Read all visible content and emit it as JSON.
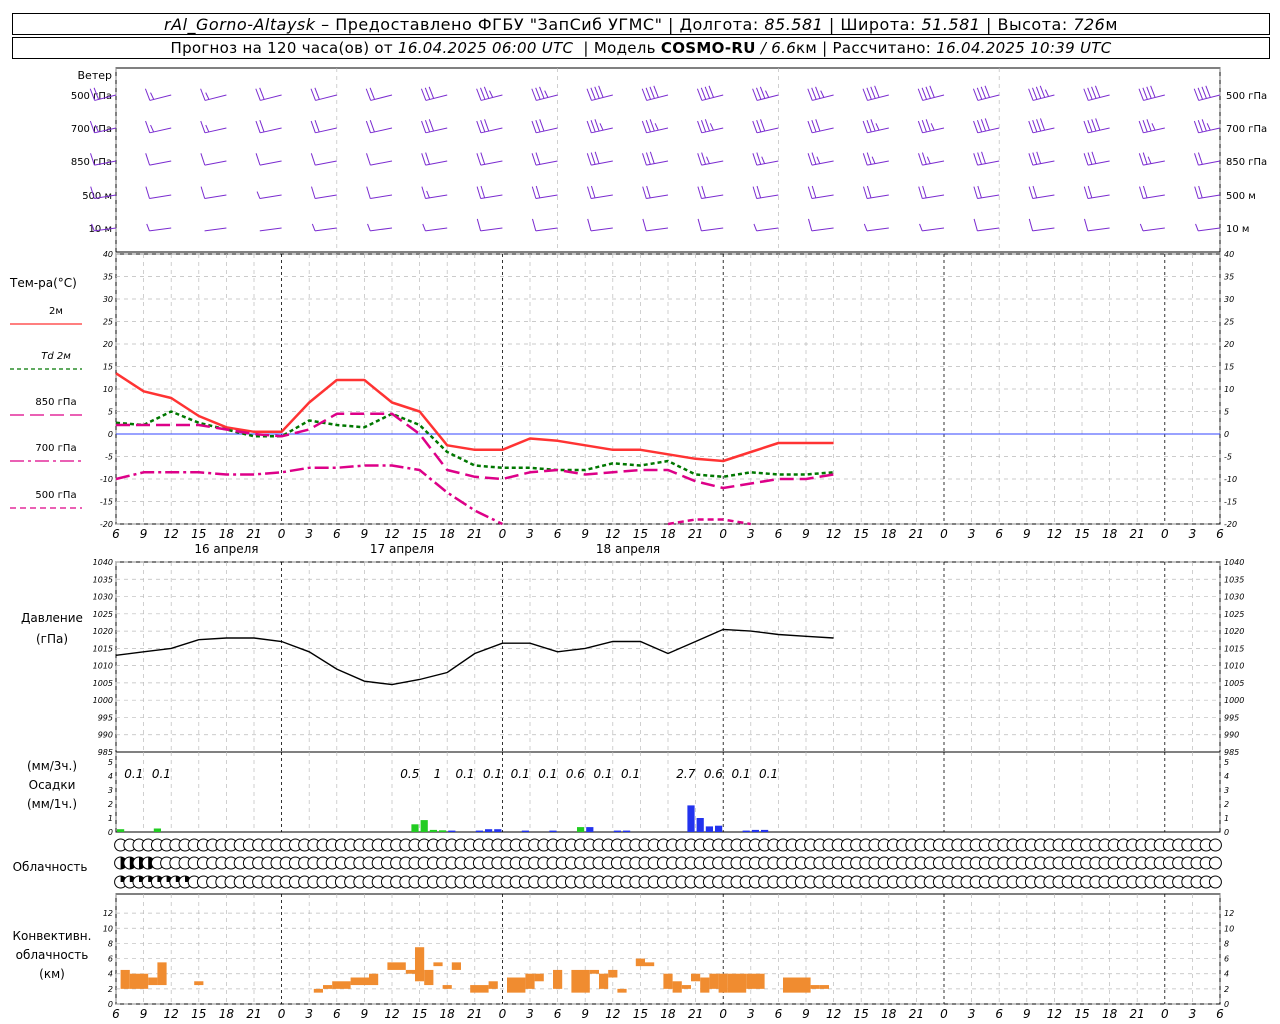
{
  "header": {
    "station": "rAl_Gorno-Altaysk",
    "provider": "– Предоставлено ФГБУ \"ЗапСиб УГМС\"",
    "lon_label": "Долгота:",
    "lon_value": "85.581",
    "lat_label": "Широта:",
    "lat_value": "51.581",
    "alt_label": "Высота:",
    "alt_value": "726",
    "alt_unit": "м",
    "forecast_label": "Прогноз на 120 часа(ов) от",
    "forecast_time": "16.04.2025 06:00 UTC",
    "model_label": "Модель",
    "model_name": "COSMO-RU",
    "model_res": "/ 6.6",
    "model_res_unit": "км",
    "calc_label": "Рассчитано:",
    "calc_time": "16.04.2025 10:39 UTC"
  },
  "chart_data": [
    {
      "id": "wind",
      "type": "wind-barbs",
      "title": "Ветер",
      "levels": [
        "500 гПа",
        "700 гПа",
        "850 гПа",
        "500 м",
        "10 м"
      ],
      "x_hours": [
        6,
        12,
        18,
        24,
        30,
        36,
        42,
        48,
        54,
        60,
        66,
        72,
        78,
        84,
        90,
        96,
        102,
        108,
        114,
        120,
        126
      ],
      "speed_ms": [
        [
          10,
          9,
          8,
          10,
          12,
          12,
          17,
          18,
          18,
          20,
          20,
          20,
          18,
          18,
          20,
          20,
          22,
          24,
          22,
          22,
          22
        ],
        [
          8,
          8,
          8,
          10,
          10,
          11,
          15,
          15,
          16,
          18,
          18,
          18,
          17,
          17,
          18,
          18,
          20,
          20,
          20,
          18,
          18
        ],
        [
          6,
          5,
          5,
          5,
          7,
          7,
          10,
          12,
          12,
          15,
          15,
          14,
          14,
          14,
          14,
          14,
          15,
          16,
          15,
          14,
          12
        ],
        [
          5,
          5,
          5,
          4,
          6,
          6,
          8,
          10,
          11,
          12,
          12,
          11,
          10,
          12,
          10,
          10,
          11,
          12,
          11,
          10,
          10
        ],
        [
          3,
          3,
          2,
          2,
          3,
          3,
          4,
          5,
          5,
          6,
          5,
          5,
          4,
          5,
          4,
          4,
          5,
          6,
          5,
          4,
          4
        ]
      ]
    },
    {
      "id": "temp",
      "type": "line",
      "ylabel": "Тем-ра(°C)",
      "ylim": [
        -20,
        40
      ],
      "yticks": [
        -20,
        -15,
        -10,
        -5,
        0,
        5,
        10,
        15,
        20,
        25,
        30,
        35,
        40
      ],
      "xticks": [
        "6",
        "9",
        "12",
        "15",
        "18",
        "21",
        "0",
        "3",
        "6",
        "9",
        "12",
        "15",
        "18",
        "21",
        "0",
        "3",
        "6",
        "9",
        "12",
        "15",
        "18",
        "21",
        "0",
        "3",
        "6",
        "9",
        "12"
      ],
      "day_labels": [
        {
          "hour": 12,
          "label": "16 апреля"
        },
        {
          "hour": 36,
          "label": "17 апреля"
        },
        {
          "hour": 60,
          "label": "18 апреля"
        }
      ],
      "x_hours": [
        6,
        9,
        12,
        15,
        18,
        21,
        24,
        27,
        30,
        33,
        36,
        39,
        42,
        45,
        48,
        51,
        54,
        57,
        60,
        63,
        66,
        69,
        72,
        75,
        78,
        81,
        84
      ],
      "series": [
        {
          "name": "2м",
          "color": "#ff3333",
          "dash": "none",
          "values": [
            13.5,
            9.5,
            8,
            4,
            1.5,
            0.5,
            0.5,
            7,
            12,
            12,
            7,
            5,
            -2.5,
            -3.5,
            -3.5,
            -1,
            -1.5,
            -2.5,
            -3.5,
            -3.5,
            -4.5,
            -5.5,
            -6,
            -4,
            -2,
            -2,
            -2
          ]
        },
        {
          "name": "Td 2м",
          "color": "#007700",
          "dash": "4 3",
          "values": [
            2.5,
            2,
            5,
            2.5,
            1,
            -0.5,
            -0.5,
            3,
            2,
            1.5,
            4.5,
            2,
            -4,
            -7,
            -7.5,
            -7.5,
            -8,
            -8,
            -6.5,
            -7,
            -6,
            -9,
            -9.5,
            -8.5,
            -9,
            -9,
            -8.5
          ]
        },
        {
          "name": "850 гПа",
          "color": "#dd0088",
          "dash": "14 6",
          "values": [
            2,
            2,
            2,
            2,
            1,
            0,
            -0.5,
            1,
            4.5,
            4.5,
            4.5,
            0,
            -8,
            -9.5,
            -10,
            -8.5,
            -8,
            -9,
            -8.5,
            -8,
            -8,
            -10.5,
            -12,
            -11,
            -10,
            -10,
            -9
          ]
        },
        {
          "name": "700 гПа",
          "color": "#dd0088",
          "dash": "14 4 3 4",
          "values": [
            -10,
            -8.5,
            -8.5,
            -8.5,
            -9,
            -9,
            -8.5,
            -7.5,
            -7.5,
            -7,
            -7,
            -8,
            -13,
            -17,
            -20
          ]
        },
        {
          "name": "500 гПа",
          "color": "#dd0088",
          "dash": "6 4",
          "values": [
            -20,
            -19,
            -19,
            -20
          ]
        }
      ]
    },
    {
      "id": "pressure",
      "type": "line",
      "ylabel": "Давление",
      "yunit": "(гПа)",
      "ylim": [
        985,
        1040
      ],
      "yticks": [
        985,
        990,
        995,
        1000,
        1005,
        1010,
        1015,
        1020,
        1025,
        1030,
        1035,
        1040
      ],
      "x_hours": [
        6,
        9,
        12,
        15,
        18,
        21,
        24,
        27,
        30,
        33,
        36,
        39,
        42,
        45,
        48,
        51,
        54,
        57,
        60,
        63,
        66,
        69,
        72,
        75,
        78,
        81,
        84
      ],
      "series": [
        {
          "name": "pressure",
          "color": "#000000",
          "values": [
            1013,
            1014,
            1015,
            1017.5,
            1018,
            1018,
            1017,
            1014,
            1009,
            1005.5,
            1004.5,
            1006,
            1008,
            1013.5,
            1016.5,
            1016.5,
            1014,
            1015,
            1017,
            1017,
            1013.5,
            1017,
            1020.5,
            1020,
            1019,
            1018.5,
            1018
          ]
        }
      ]
    },
    {
      "id": "precip",
      "type": "bar",
      "ylabel": "(мм/3ч.)",
      "ylabel2": "Осадки",
      "ylabel3": "(мм/1ч.)",
      "ylim": [
        0,
        5
      ],
      "yticks": [
        0,
        1,
        2,
        3,
        4,
        5
      ],
      "totals": [
        {
          "hour": 7.5,
          "label": "0.1"
        },
        {
          "hour": 10.5,
          "label": "0.1"
        },
        {
          "hour": 37.5,
          "label": "0.5"
        },
        {
          "hour": 40.5,
          "label": "1"
        },
        {
          "hour": 43.5,
          "label": "0.1"
        },
        {
          "hour": 46.5,
          "label": "0.1"
        },
        {
          "hour": 49.5,
          "label": "0.1"
        },
        {
          "hour": 52.5,
          "label": "0.1"
        },
        {
          "hour": 55.5,
          "label": "0.6"
        },
        {
          "hour": 58.5,
          "label": "0.1"
        },
        {
          "hour": 61.5,
          "label": "0.1"
        },
        {
          "hour": 67.5,
          "label": "2.7"
        },
        {
          "hour": 70.5,
          "label": "0.6"
        },
        {
          "hour": 73.5,
          "label": "0.1"
        },
        {
          "hour": 76.5,
          "label": "0.1"
        }
      ],
      "bars": [
        {
          "hour": 6.5,
          "value": 0.2,
          "color": "#22cc22"
        },
        {
          "hour": 10.5,
          "value": 0.25,
          "color": "#22cc22"
        },
        {
          "hour": 38.5,
          "value": 0.55,
          "color": "#22cc22"
        },
        {
          "hour": 39.5,
          "value": 0.85,
          "color": "#22cc22"
        },
        {
          "hour": 40.5,
          "value": 0.15,
          "color": "#22cc22"
        },
        {
          "hour": 41.5,
          "value": 0.12,
          "color": "#22cc22"
        },
        {
          "hour": 42.5,
          "value": 0.1,
          "color": "#2233ee"
        },
        {
          "hour": 45.5,
          "value": 0.1,
          "color": "#2233ee"
        },
        {
          "hour": 46.5,
          "value": 0.2,
          "color": "#2233ee"
        },
        {
          "hour": 47.5,
          "value": 0.2,
          "color": "#2233ee"
        },
        {
          "hour": 50.5,
          "value": 0.1,
          "color": "#2233ee"
        },
        {
          "hour": 53.5,
          "value": 0.1,
          "color": "#2233ee"
        },
        {
          "hour": 56.5,
          "value": 0.35,
          "color": "#22cc22"
        },
        {
          "hour": 57.5,
          "value": 0.35,
          "color": "#2233ee"
        },
        {
          "hour": 60.5,
          "value": 0.1,
          "color": "#2233ee"
        },
        {
          "hour": 61.5,
          "value": 0.1,
          "color": "#2233ee"
        },
        {
          "hour": 68.5,
          "value": 1.9,
          "color": "#2233ee"
        },
        {
          "hour": 69.5,
          "value": 1.0,
          "color": "#2233ee"
        },
        {
          "hour": 70.5,
          "value": 0.4,
          "color": "#2233ee"
        },
        {
          "hour": 71.5,
          "value": 0.45,
          "color": "#2233ee"
        },
        {
          "hour": 74.5,
          "value": 0.1,
          "color": "#2233ee"
        },
        {
          "hour": 75.5,
          "value": 0.15,
          "color": "#2233ee"
        },
        {
          "hour": 76.5,
          "value": 0.15,
          "color": "#2233ee"
        }
      ]
    },
    {
      "id": "clouds",
      "type": "symbols",
      "ylabel": "Облачность",
      "start_hour": 6,
      "step_hours": 1,
      "rows": [
        "000000000000000000000000000000000000000000000000000000000000000000000000000000000000000000000000000000000000000000000000",
        "444400000000000000000000000000000000000000000000000000000000000000000000000000000000000000000000000000000000000000000000",
        "222222220000000000000000000000000000000000000000000000000000000000000000000000000000000000000000000000000000000000000000"
      ]
    },
    {
      "id": "convective",
      "type": "bar",
      "ylabel": "Конвективн.",
      "ylabel2": "облачность",
      "ylabel3": "(км)",
      "ylim": [
        0,
        14
      ],
      "yticks": [
        0,
        2,
        4,
        6,
        8,
        10,
        12
      ],
      "segments": [
        {
          "from": 6.5,
          "to": 7.5,
          "bottom": 2,
          "top": 4.5
        },
        {
          "from": 7.5,
          "to": 9.5,
          "bottom": 2,
          "top": 4
        },
        {
          "from": 9.5,
          "to": 10.5,
          "bottom": 2.5,
          "top": 3.5
        },
        {
          "from": 10.5,
          "to": 11.5,
          "bottom": 2.5,
          "top": 5.5
        },
        {
          "from": 14.5,
          "to": 15.5,
          "bottom": 2.5,
          "top": 3
        },
        {
          "from": 27.5,
          "to": 28.5,
          "bottom": 1.5,
          "top": 2
        },
        {
          "from": 28.5,
          "to": 29.5,
          "bottom": 2,
          "top": 2.5
        },
        {
          "from": 29.5,
          "to": 31.5,
          "bottom": 2,
          "top": 3
        },
        {
          "from": 31.5,
          "to": 33.5,
          "bottom": 2.5,
          "top": 3.5
        },
        {
          "from": 33.5,
          "to": 34.5,
          "bottom": 2.5,
          "top": 4
        },
        {
          "from": 35.5,
          "to": 37.5,
          "bottom": 4.5,
          "top": 5.5
        },
        {
          "from": 37.5,
          "to": 38.5,
          "bottom": 4,
          "top": 4.5
        },
        {
          "from": 38.5,
          "to": 39.5,
          "bottom": 3,
          "top": 7.5
        },
        {
          "from": 39.5,
          "to": 40.5,
          "bottom": 2.5,
          "top": 4.5
        },
        {
          "from": 40.5,
          "to": 41.5,
          "bottom": 5,
          "top": 5.5
        },
        {
          "from": 41.5,
          "to": 42.5,
          "bottom": 2,
          "top": 2.5
        },
        {
          "from": 42.5,
          "to": 43.5,
          "bottom": 4.5,
          "top": 5.5
        },
        {
          "from": 44.5,
          "to": 46.5,
          "bottom": 1.5,
          "top": 2.5
        },
        {
          "from": 46.5,
          "to": 47.5,
          "bottom": 2,
          "top": 3
        },
        {
          "from": 48.5,
          "to": 50.5,
          "bottom": 1.5,
          "top": 3.5
        },
        {
          "from": 50.5,
          "to": 51.5,
          "bottom": 2,
          "top": 4
        },
        {
          "from": 51.5,
          "to": 52.5,
          "bottom": 3,
          "top": 4
        },
        {
          "from": 53.5,
          "to": 54.5,
          "bottom": 2,
          "top": 4.5
        },
        {
          "from": 55.5,
          "to": 57.5,
          "bottom": 1.5,
          "top": 4.5
        },
        {
          "from": 57.5,
          "to": 58.5,
          "bottom": 4,
          "top": 4.5
        },
        {
          "from": 58.5,
          "to": 59.5,
          "bottom": 2,
          "top": 4
        },
        {
          "from": 59.5,
          "to": 60.5,
          "bottom": 3.5,
          "top": 4.5
        },
        {
          "from": 60.5,
          "to": 61.5,
          "bottom": 1.5,
          "top": 2
        },
        {
          "from": 62.5,
          "to": 63.5,
          "bottom": 5,
          "top": 6
        },
        {
          "from": 63.5,
          "to": 64.5,
          "bottom": 5,
          "top": 5.5
        },
        {
          "from": 65.5,
          "to": 66.5,
          "bottom": 2,
          "top": 4
        },
        {
          "from": 66.5,
          "to": 67.5,
          "bottom": 1.5,
          "top": 3
        },
        {
          "from": 67.5,
          "to": 68.5,
          "bottom": 2,
          "top": 2.5
        },
        {
          "from": 68.5,
          "to": 69.5,
          "bottom": 3,
          "top": 4
        },
        {
          "from": 69.5,
          "to": 70.5,
          "bottom": 1.5,
          "top": 3.5
        },
        {
          "from": 70.5,
          "to": 71.5,
          "bottom": 2,
          "top": 4
        },
        {
          "from": 71.5,
          "to": 72.5,
          "bottom": 1.5,
          "top": 4
        },
        {
          "from": 72.5,
          "to": 74.5,
          "bottom": 1.5,
          "top": 4
        },
        {
          "from": 74.5,
          "to": 76.5,
          "bottom": 2,
          "top": 4
        },
        {
          "from": 78.5,
          "to": 81.5,
          "bottom": 1.5,
          "top": 3.5
        },
        {
          "from": 81.5,
          "to": 82.5,
          "bottom": 2,
          "top": 2.5
        },
        {
          "from": 82.5,
          "to": 83.5,
          "bottom": 2,
          "top": 2.5
        }
      ]
    }
  ]
}
